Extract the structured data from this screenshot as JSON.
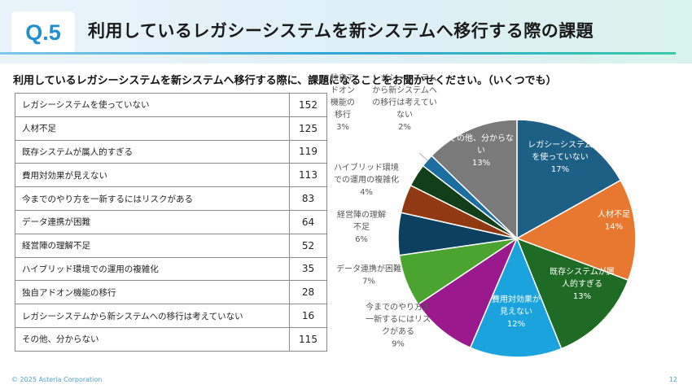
{
  "header": {
    "badge": "Q.5",
    "title": "利用しているレガシーシステムを新システムへ移行する際の課題"
  },
  "question": "利用しているレガシーシステムを新システムへ移行する際に、課題になることをお聞かせください。（いくつでも）",
  "table": {
    "rows": [
      {
        "label": "レガシーシステムを使っていない",
        "count": "152"
      },
      {
        "label": "人材不足",
        "count": "125"
      },
      {
        "label": "既存システムが属人的すぎる",
        "count": "119"
      },
      {
        "label": "費用対効果が見えない",
        "count": "113"
      },
      {
        "label": "今までのやり方を一新するにはリスクがある",
        "count": "83"
      },
      {
        "label": "データ連携が困難",
        "count": "64"
      },
      {
        "label": "経営陣の理解不足",
        "count": "52"
      },
      {
        "label": "ハイブリッド環境での運用の複雑化",
        "count": "35"
      },
      {
        "label": "独自アドオン機能の移行",
        "count": "28"
      },
      {
        "label": "レガシーシステムから新システムへの移行は考えていない",
        "count": "16"
      },
      {
        "label": "その他、分からない",
        "count": "115"
      }
    ]
  },
  "chart_data": {
    "type": "pie",
    "slices": [
      {
        "label": [
          "レガシーシステム",
          "を使っていない"
        ],
        "value": 152,
        "pct": "17%",
        "color": "#1e5f86"
      },
      {
        "label": [
          "人材不足"
        ],
        "value": 125,
        "pct": "14%",
        "color": "#e8782f"
      },
      {
        "label": [
          "既存システムが属",
          "人的すぎる"
        ],
        "value": 119,
        "pct": "13%",
        "color": "#1e6b25"
      },
      {
        "label": [
          "費用対効果が",
          "見えない"
        ],
        "value": 113,
        "pct": "12%",
        "color": "#1aa3dd"
      },
      {
        "label": [
          "今までのやり方を",
          "一新するにはリス",
          "クがある"
        ],
        "value": 83,
        "pct": "9%",
        "color": "#9a1a8e"
      },
      {
        "label": [
          "データ連携が困難"
        ],
        "value": 64,
        "pct": "7%",
        "color": "#4aa42f"
      },
      {
        "label": [
          "経営陣の理解",
          "不足"
        ],
        "value": 52,
        "pct": "6%",
        "color": "#0b4060"
      },
      {
        "label": [
          "ハイブリッド環境",
          "での運用の複雑化"
        ],
        "value": 35,
        "pct": "4%",
        "color": "#8f3a12"
      },
      {
        "label": [
          "独自ア",
          "ドオン",
          "機能の",
          "移行"
        ],
        "value": 28,
        "pct": "3%",
        "color": "#123f18"
      },
      {
        "label": [
          "レガシーシステム",
          "から新システムへ",
          "の移行は考えてい",
          "ない"
        ],
        "value": 16,
        "pct": "2%",
        "color": "#1c6ea0"
      },
      {
        "label": [
          "その他、分からな",
          "い"
        ],
        "value": 115,
        "pct": "13%",
        "color": "#7a7a7a"
      }
    ]
  },
  "footer": {
    "copyright": "© 2025 Asteria Corporation",
    "page": "12"
  }
}
